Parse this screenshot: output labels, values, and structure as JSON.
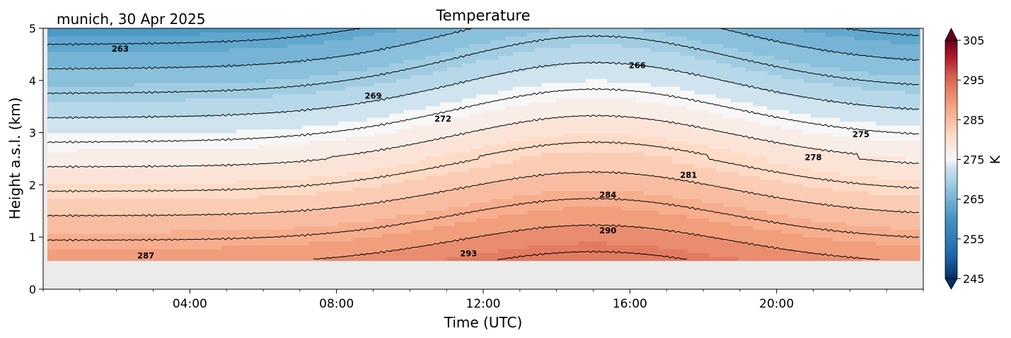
{
  "chart_data": {
    "type": "heatmap",
    "title": "Temperature",
    "subtitle": "munich, 30 Apr 2025",
    "xlabel": "Time (UTC)",
    "ylabel": "Height a.s.l. (km)",
    "xlim_hours": [
      0,
      24
    ],
    "ylim": [
      0,
      5
    ],
    "x_ticks": [
      {
        "hour": 4,
        "label": "04:00"
      },
      {
        "hour": 8,
        "label": "08:00"
      },
      {
        "hour": 12,
        "label": "12:00"
      },
      {
        "hour": 16,
        "label": "16:00"
      },
      {
        "hour": 20,
        "label": "20:00"
      }
    ],
    "y_ticks": [
      0,
      1,
      2,
      3,
      4,
      5
    ],
    "colorbar": {
      "label": "K",
      "min": 245,
      "max": 305,
      "ticks": [
        245,
        255,
        265,
        275,
        285,
        295,
        305
      ],
      "extend": "both",
      "colormap": "RdBu_r"
    },
    "no_data_below_km": 0.55,
    "no_data_color": "#ebebeb",
    "contour_labels": [
      {
        "value": 263,
        "hour": 2.1,
        "height": 4.6
      },
      {
        "value": 266,
        "hour": 16.2,
        "height": 4.28
      },
      {
        "value": 269,
        "hour": 9.0,
        "height": 3.7
      },
      {
        "value": 272,
        "hour": 10.9,
        "height": 3.26
      },
      {
        "value": 275,
        "hour": 22.3,
        "height": 2.96
      },
      {
        "value": 278,
        "hour": 21.0,
        "height": 2.52
      },
      {
        "value": 281,
        "hour": 17.6,
        "height": 2.18
      },
      {
        "value": 284,
        "hour": 15.4,
        "height": 1.8
      },
      {
        "value": 290,
        "hour": 15.4,
        "height": 1.12
      },
      {
        "value": 293,
        "hour": 11.6,
        "height": 0.68
      },
      {
        "value": 287,
        "hour": 2.8,
        "height": 0.64
      }
    ]
  }
}
